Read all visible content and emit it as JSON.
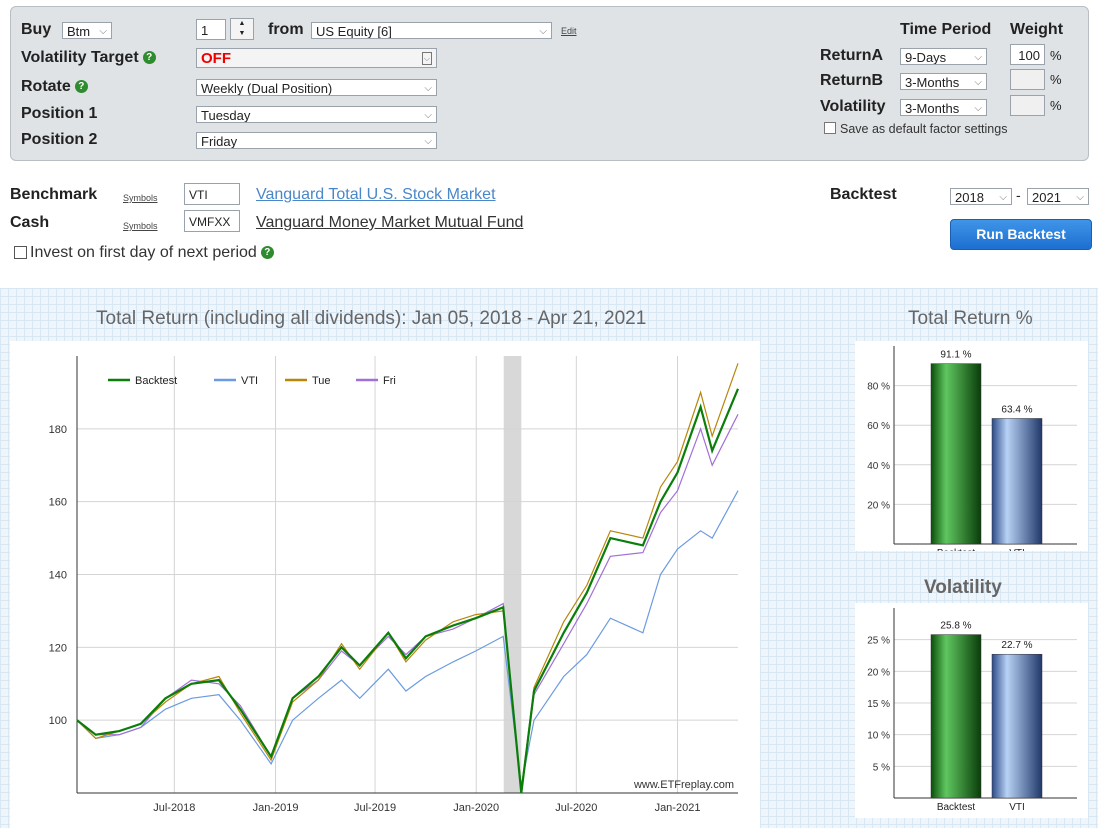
{
  "settings": {
    "buy_label": "Buy",
    "buy_select": "Btm",
    "buy_count": "1",
    "from_label": "from",
    "from_select": "US Equity [6]",
    "edit_link": "Edit",
    "vol_target_label": "Volatility Target",
    "vol_target_value": "OFF",
    "rotate_label": "Rotate",
    "rotate_value": "Weekly (Dual Position)",
    "position1_label": "Position 1",
    "position1_value": "Tuesday",
    "position2_label": "Position 2",
    "position2_value": "Friday",
    "time_period_header": "Time Period",
    "weight_header": "Weight",
    "returnA_label": "ReturnA",
    "returnA_period": "9-Days",
    "returnA_weight": "100",
    "returnB_label": "ReturnB",
    "returnB_period": "3-Months",
    "returnB_weight": "",
    "volatility_label": "Volatility",
    "volatility_period": "3-Months",
    "volatility_weight": "",
    "percent_sign": "%",
    "save_default_label": "Save as default factor settings"
  },
  "benchmark": {
    "label": "Benchmark",
    "symbols_link": "Symbols",
    "symbol": "VTI",
    "name": "Vanguard Total U.S. Stock Market"
  },
  "cash": {
    "label": "Cash",
    "symbols_link": "Symbols",
    "symbol": "VMFXX",
    "name": "Vanguard Money Market Mutual Fund"
  },
  "invest_first_day_label": "Invest on first day of next period",
  "backtest": {
    "label": "Backtest",
    "start_year": "2018",
    "dash": "-",
    "end_year": "2021",
    "run_button": "Run Backtest"
  },
  "colors": {
    "backtest": "#0a7d0a",
    "vti": "#6b9be0",
    "tue": "#b8860b",
    "fri": "#a070d8",
    "run_button": "#2a7fde"
  },
  "chart_data": [
    {
      "type": "line",
      "title": "Total Return (including all dividends): Jan 05, 2018 - Apr 21, 2021",
      "watermark": "www.ETFreplay.com",
      "x_tick_labels": [
        "Jul-2018",
        "Jan-2019",
        "Jul-2019",
        "Jan-2020",
        "Jul-2020",
        "Jan-2021"
      ],
      "y_tick_labels": [
        "100",
        "120",
        "140",
        "160",
        "180"
      ],
      "ylim": [
        80,
        200
      ],
      "shaded_period": [
        "2020-02-20",
        "2020-03-23"
      ],
      "grid": true,
      "legend_position": "top-left",
      "x": [
        "2018-01-05",
        "2018-02-08",
        "2018-03-23",
        "2018-05-01",
        "2018-06-15",
        "2018-08-01",
        "2018-09-20",
        "2018-10-29",
        "2018-12-24",
        "2019-02-01",
        "2019-03-20",
        "2019-05-01",
        "2019-06-03",
        "2019-07-25",
        "2019-08-26",
        "2019-10-01",
        "2019-11-20",
        "2019-12-31",
        "2020-02-19",
        "2020-03-23",
        "2020-04-15",
        "2020-06-08",
        "2020-07-20",
        "2020-09-01",
        "2020-10-30",
        "2020-12-01",
        "2021-01-01",
        "2021-02-12",
        "2021-03-05",
        "2021-04-21"
      ],
      "series": [
        {
          "name": "Backtest",
          "color": "#0a7d0a",
          "values": [
            100,
            96,
            97,
            99,
            106,
            110,
            111,
            103,
            90,
            106,
            112,
            120,
            115,
            124,
            117,
            123,
            126,
            128,
            131,
            80,
            108,
            124,
            135,
            150,
            148,
            160,
            168,
            186,
            174,
            191
          ]
        },
        {
          "name": "VTI",
          "color": "#6b9be0",
          "values": [
            100,
            95,
            96,
            98,
            103,
            106,
            107,
            100,
            88,
            100,
            106,
            111,
            106,
            114,
            108,
            112,
            116,
            119,
            123,
            82,
            100,
            112,
            118,
            128,
            124,
            140,
            147,
            152,
            150,
            163
          ]
        },
        {
          "name": "Tue",
          "color": "#b8860b",
          "values": [
            100,
            95,
            97,
            99,
            105,
            110,
            112,
            102,
            89,
            105,
            111,
            121,
            114,
            124,
            116,
            122,
            127,
            129,
            130,
            81,
            109,
            127,
            137,
            152,
            150,
            164,
            171,
            190,
            178,
            198
          ]
        },
        {
          "name": "Fri",
          "color": "#a070d8",
          "values": [
            100,
            96,
            96,
            98,
            106,
            111,
            110,
            104,
            90,
            106,
            111,
            119,
            115,
            123,
            118,
            123,
            125,
            128,
            132,
            80,
            107,
            121,
            132,
            145,
            146,
            157,
            163,
            180,
            170,
            184
          ]
        }
      ]
    },
    {
      "type": "bar",
      "title": "Total Return %",
      "categories": [
        "Backtest",
        "VTI"
      ],
      "values": [
        91.1,
        63.4
      ],
      "data_labels": [
        "91.1 %",
        "63.4 %"
      ],
      "y_tick_labels": [
        "20 %",
        "40 %",
        "60 %",
        "80 %"
      ],
      "ylim": [
        0,
        100
      ]
    },
    {
      "type": "bar",
      "title": "Volatility",
      "categories": [
        "Backtest",
        "VTI"
      ],
      "values": [
        25.8,
        22.7
      ],
      "data_labels": [
        "25.8 %",
        "22.7 %"
      ],
      "y_tick_labels": [
        "5 %",
        "10 %",
        "15 %",
        "20 %",
        "25 %"
      ],
      "ylim": [
        0,
        30
      ]
    }
  ]
}
